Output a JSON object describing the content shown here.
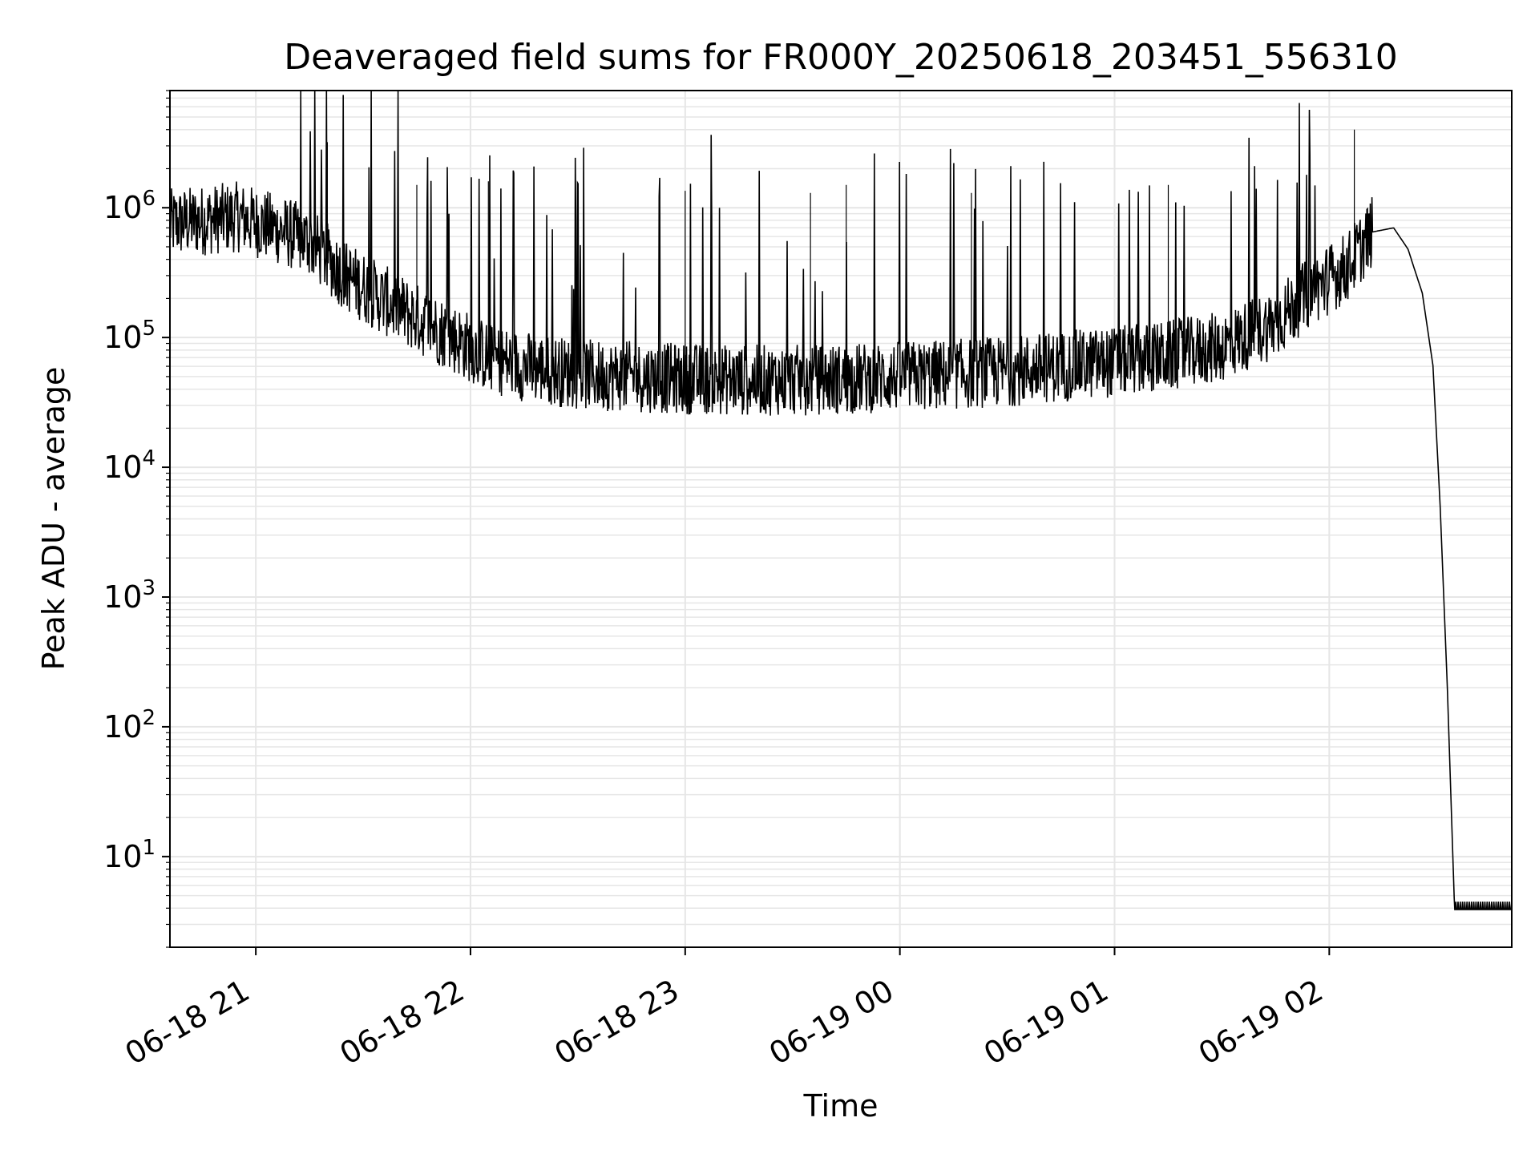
{
  "chart_data": {
    "type": "line",
    "title": "Deaveraged field sums for FR000Y_20250618_203451_556310",
    "xlabel": "Time",
    "ylabel": "Peak ADU - average",
    "yscale": "log",
    "grid": true,
    "legend": "none",
    "xlim": [
      "2025-06-18 20:36",
      "2025-06-19 02:51"
    ],
    "ylim": [
      2,
      8000000
    ],
    "x_ticks": [
      "06-18 21",
      "06-18 22",
      "06-18 23",
      "06-19 00",
      "06-19 01",
      "06-19 02"
    ],
    "y_ticks": [
      {
        "base": "10",
        "exp": "1",
        "value": 10
      },
      {
        "base": "10",
        "exp": "2",
        "value": 100
      },
      {
        "base": "10",
        "exp": "3",
        "value": 1000
      },
      {
        "base": "10",
        "exp": "4",
        "value": 10000
      },
      {
        "base": "10",
        "exp": "5",
        "value": 100000
      },
      {
        "base": "10",
        "exp": "6",
        "value": 1000000
      }
    ],
    "line_color": "#000000",
    "grid_color": "#e6e6e6",
    "series": [
      {
        "x": [
          "2025-06-18 20:36",
          "2025-06-18 20:45",
          "2025-06-18 20:55",
          "2025-06-18 21:05",
          "2025-06-18 21:15",
          "2025-06-18 21:25",
          "2025-06-18 21:35",
          "2025-06-18 21:45",
          "2025-06-18 21:55",
          "2025-06-18 22:05",
          "2025-06-18 22:15",
          "2025-06-18 22:30",
          "2025-06-18 22:45",
          "2025-06-18 23:00",
          "2025-06-18 23:15",
          "2025-06-18 23:30",
          "2025-06-18 23:45",
          "2025-06-19 00:00",
          "2025-06-19 00:15",
          "2025-06-19 00:30",
          "2025-06-19 00:45",
          "2025-06-19 01:00",
          "2025-06-19 01:15",
          "2025-06-19 01:30",
          "2025-06-19 01:45",
          "2025-06-19 01:55",
          "2025-06-19 02:05",
          "2025-06-19 02:12",
          "2025-06-19 02:18",
          "2025-06-19 02:22",
          "2025-06-19 02:26",
          "2025-06-19 02:29",
          "2025-06-19 02:31",
          "2025-06-19 02:33",
          "2025-06-19 02:35",
          "2025-06-19 02:51"
        ],
        "y": [
          750000,
          800000,
          850000,
          700000,
          550000,
          300000,
          200000,
          140000,
          100000,
          70000,
          60000,
          52000,
          50000,
          48000,
          47000,
          47000,
          48000,
          50000,
          52000,
          55000,
          60000,
          65000,
          72000,
          85000,
          130000,
          230000,
          350000,
          650000,
          700000,
          480000,
          220000,
          60000,
          5000,
          200,
          4,
          4
        ]
      }
    ],
    "spikes": [
      {
        "x": "2025-06-18 21:20",
        "y": 3200000
      },
      {
        "x": "2025-06-18 21:45",
        "y": 1500000
      },
      {
        "x": "2025-06-18 22:05",
        "y": 1600000
      },
      {
        "x": "2025-06-18 22:30",
        "y": 1400000
      },
      {
        "x": "2025-06-18 23:00",
        "y": 1350000
      },
      {
        "x": "2025-06-18 23:35",
        "y": 1300000
      },
      {
        "x": "2025-06-18 23:45",
        "y": 1500000
      },
      {
        "x": "2025-06-19 00:20",
        "y": 1300000
      },
      {
        "x": "2025-06-19 01:15",
        "y": 1500000
      },
      {
        "x": "2025-06-19 02:07",
        "y": 4000000
      }
    ]
  }
}
